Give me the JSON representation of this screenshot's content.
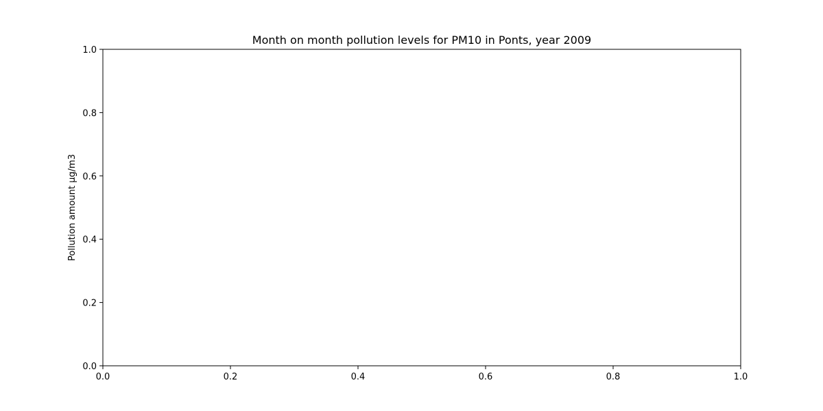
{
  "chart_data": {
    "type": "line",
    "title": "Month on month pollution levels for PM10 in Ponts, year 2009",
    "xlabel": "",
    "ylabel": "Pollution amount µg/m3",
    "x": [],
    "series": [],
    "xlim": [
      0.0,
      1.0
    ],
    "ylim": [
      0.0,
      1.0
    ],
    "x_ticks": [
      "0.0",
      "0.2",
      "0.4",
      "0.6",
      "0.8",
      "1.0"
    ],
    "y_ticks": [
      "0.0",
      "0.2",
      "0.4",
      "0.6",
      "0.8",
      "1.0"
    ],
    "grid": false,
    "legend": "none"
  },
  "colors": {
    "axes": "#000000",
    "background": "#ffffff"
  }
}
